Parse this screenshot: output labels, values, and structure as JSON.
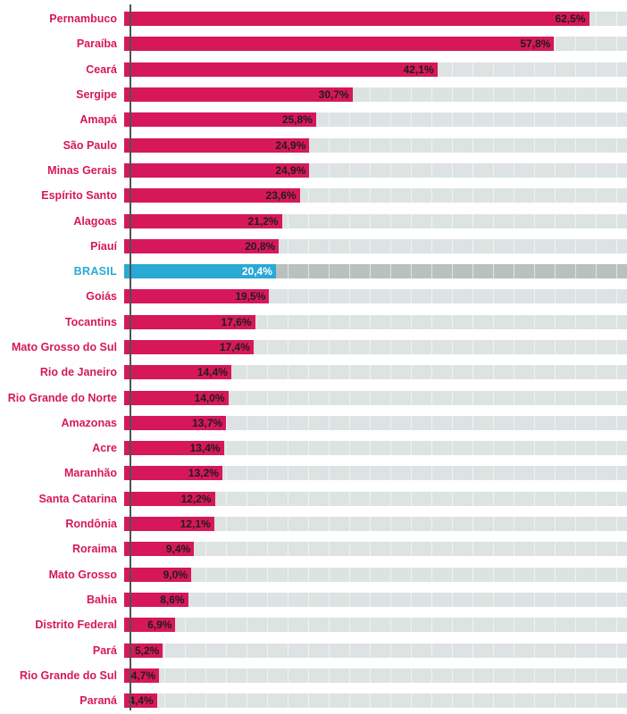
{
  "chart_data": {
    "type": "bar",
    "orientation": "horizontal",
    "title": "",
    "xlabel": "",
    "ylabel": "",
    "xlim": [
      0,
      67.6
    ],
    "axis_max": 67.6,
    "grid": true,
    "legend": false,
    "highlight_category": "BRASIL",
    "categories": [
      "Pernambuco",
      "Paraíba",
      "Ceará",
      "Sergipe",
      "Amapá",
      "São Paulo",
      "Minas Gerais",
      "Espírito Santo",
      "Alagoas",
      "Piauí",
      "BRASIL",
      "Goiás",
      "Tocantins",
      "Mato Grosso do Sul",
      "Rio de Janeiro",
      "Rio Grande do Norte",
      "Amazonas",
      "Acre",
      "Maranhão",
      "Santa Catarina",
      "Rondônia",
      "Roraima",
      "Mato Grosso",
      "Bahia",
      "Distrito Federal",
      "Pará",
      "Rio Grande do Sul",
      "Paraná"
    ],
    "values": [
      62.5,
      57.8,
      42.1,
      30.7,
      25.8,
      24.9,
      24.9,
      23.6,
      21.2,
      20.8,
      20.4,
      19.5,
      17.6,
      17.4,
      14.4,
      14.0,
      13.7,
      13.4,
      13.2,
      12.2,
      12.1,
      9.4,
      9.0,
      8.6,
      6.9,
      5.2,
      4.7,
      4.4
    ],
    "value_labels": [
      "62,5%",
      "57,8%",
      "42,1%",
      "30,7%",
      "25,8%",
      "24,9%",
      "24,9%",
      "23,6%",
      "21,2%",
      "20,8%",
      "20,4%",
      "19,5%",
      "17,6%",
      "17,4%",
      "14,4%",
      "14,0%",
      "13,7%",
      "13,4%",
      "13,2%",
      "12,2%",
      "12,1%",
      "9,4%",
      "9,0%",
      "8,6%",
      "6,9%",
      "5,2%",
      "4,7%",
      "4,4%"
    ],
    "colors": {
      "bar": "#d6185b",
      "highlight_bar": "#2aa9d4",
      "track": "#dde3e3",
      "highlight_track": "#b9c1c0",
      "label": "#d6185b",
      "highlight_label": "#2aa9d4",
      "value_text": "#1d1d1d",
      "highlight_value_text": "#ffffff",
      "axis_line": "#4d5353"
    }
  }
}
